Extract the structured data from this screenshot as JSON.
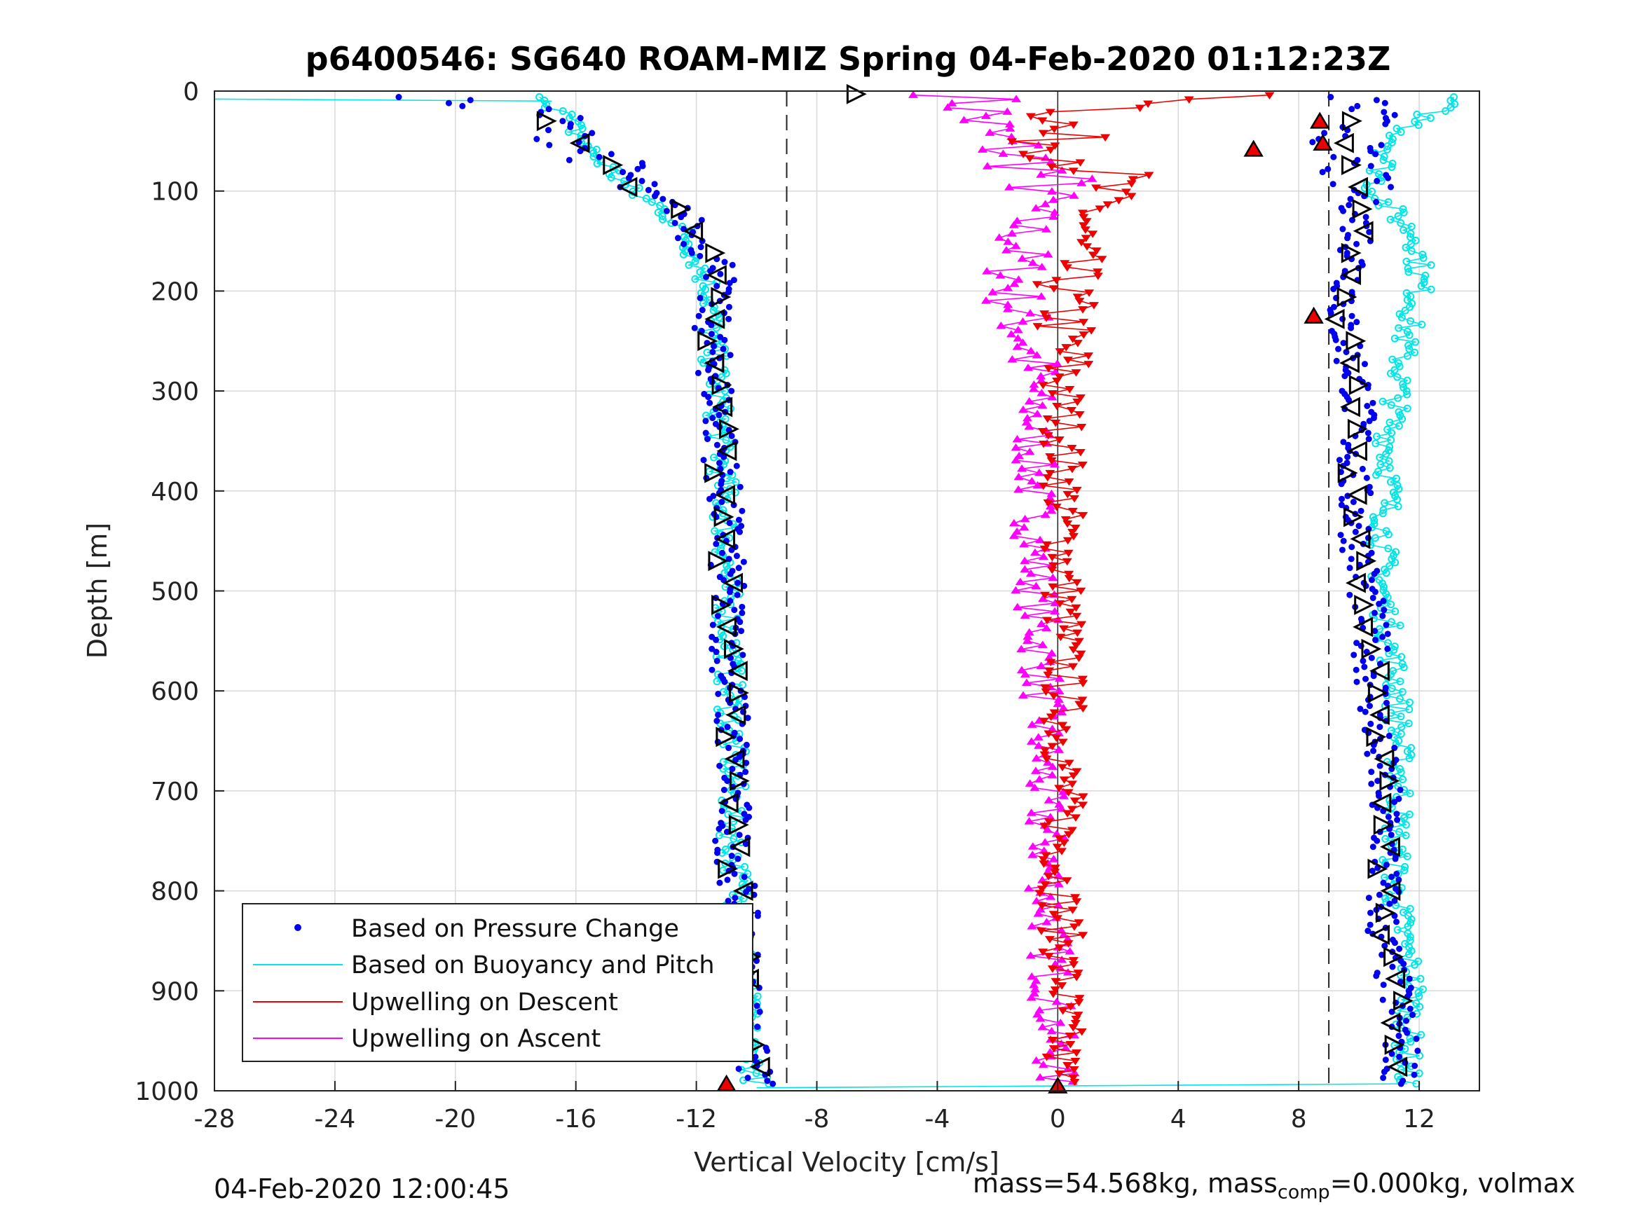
{
  "chart_data": {
    "type": "scatter",
    "title": "p6400546: SG640 ROAM-MIZ Spring 04-Feb-2020 01:12:23Z",
    "xlabel": "Vertical Velocity [cm/s]",
    "ylabel": "Depth [m]",
    "xlim": [
      -28,
      14
    ],
    "ylim": [
      1000,
      0
    ],
    "y_reversed": true,
    "grid": true,
    "x_ticks": [
      "-28",
      "-24",
      "-20",
      "-16",
      "-12",
      "-8",
      "-4",
      "0",
      "4",
      "8",
      "12"
    ],
    "y_ticks": [
      "0",
      "100",
      "200",
      "300",
      "400",
      "500",
      "600",
      "700",
      "800",
      "900",
      "1000"
    ],
    "reference_lines_x": [
      -9,
      9
    ],
    "legend_position": "bottom-left",
    "colors": {
      "pressure": "#0000ee",
      "buoyancy": "#00e5e5",
      "descent": "#ee0000",
      "ascent": "#ff00ff"
    },
    "series": [
      {
        "name": "Based on Pressure Change",
        "marker": "dot",
        "descent_profile": {
          "depth": [
            5,
            20,
            40,
            60,
            80,
            100,
            120,
            150,
            180,
            200,
            250,
            300,
            350,
            400,
            450,
            500,
            550,
            600,
            650,
            700,
            750,
            800,
            850,
            900,
            950,
            990
          ],
          "w": [
            -22,
            -17,
            -16.5,
            -15.5,
            -14.5,
            -14,
            -12.5,
            -12,
            -11,
            -11.5,
            -11.5,
            -11.3,
            -11.2,
            -11.1,
            -11,
            -11,
            -10.9,
            -10.9,
            -10.8,
            -10.8,
            -10.8,
            -10.6,
            -10.5,
            -10.4,
            -10.3,
            -10
          ]
        },
        "ascent_profile": {
          "depth": [
            990,
            950,
            900,
            850,
            800,
            750,
            700,
            650,
            600,
            550,
            500,
            450,
            400,
            350,
            300,
            250,
            230,
            200,
            150,
            100,
            80,
            60,
            40,
            20,
            5
          ],
          "w": [
            11.4,
            11.4,
            11.2,
            10.8,
            10.8,
            10.9,
            10.8,
            10.6,
            10.5,
            10.4,
            10.2,
            10,
            9.8,
            9.9,
            10,
            9.6,
            9.4,
            9.7,
            10,
            10,
            9.7,
            9.5,
            9.8,
            10.2,
            10
          ]
        }
      },
      {
        "name": "Based on Buoyancy and Pitch",
        "marker": "line-circle",
        "descent_profile": {
          "depth": [
            10,
            20,
            40,
            60,
            80,
            100,
            120,
            150,
            180,
            200,
            250,
            300,
            350,
            400,
            450,
            500,
            550,
            600,
            650,
            700,
            750,
            800,
            850,
            900,
            950,
            990
          ],
          "w": [
            -16.8,
            -16.5,
            -16,
            -15.5,
            -14.8,
            -14.2,
            -13,
            -12.2,
            -11.8,
            -11.5,
            -11.5,
            -11.3,
            -11.2,
            -11.1,
            -11,
            -11,
            -10.9,
            -10.9,
            -10.8,
            -10.8,
            -10.8,
            -10.6,
            -10.5,
            -10.4,
            -10.3,
            -10
          ]
        },
        "ascent_profile": {
          "depth": [
            990,
            950,
            900,
            850,
            800,
            750,
            700,
            650,
            600,
            550,
            500,
            450,
            400,
            350,
            300,
            250,
            200,
            150,
            100,
            60,
            40,
            20,
            10
          ],
          "w": [
            11.6,
            11.6,
            11.8,
            11.5,
            11.2,
            11.2,
            11.4,
            11.3,
            11.3,
            11,
            10.8,
            10.8,
            11,
            11,
            11.3,
            11.5,
            12,
            12,
            10.5,
            11,
            11.5,
            12.5,
            13
          ]
        }
      },
      {
        "name": "Upwelling on Descent",
        "marker": "triangle-down",
        "depth": [
          5,
          20,
          40,
          60,
          80,
          100,
          120,
          150,
          200,
          250,
          300,
          400,
          500,
          600,
          700,
          800,
          900,
          970
        ],
        "w": [
          7,
          1,
          -0.5,
          0.5,
          1.5,
          1.5,
          1.2,
          0.5,
          0.2,
          0.2,
          0.2,
          0.2,
          0.2,
          0.2,
          0.2,
          0.1,
          0.2,
          0.1
        ]
      },
      {
        "name": "Upwelling on Ascent",
        "marker": "triangle-up",
        "depth": [
          5,
          20,
          40,
          60,
          80,
          100,
          120,
          150,
          200,
          250,
          300,
          400,
          500,
          600,
          700,
          800,
          900,
          970
        ],
        "w": [
          -3,
          -2.5,
          -2.5,
          -1.5,
          -0.5,
          -0.2,
          -1,
          -1.2,
          -1.5,
          -1,
          -0.8,
          -0.8,
          -0.7,
          -0.5,
          -0.5,
          -0.3,
          -0.2,
          -0.1
        ]
      }
    ],
    "legend": [
      "Based on Pressure Change",
      "Based on Buoyancy and Pitch",
      "Upwelling on Descent",
      "Upwelling on Ascent"
    ],
    "annotations": {
      "footer_left": "04-Feb-2020 12:00:45",
      "footer_right_prefix": "mass=54.568kg, mass",
      "footer_right_sub": "comp",
      "footer_right_suffix": "=0.000kg, volmax"
    }
  }
}
